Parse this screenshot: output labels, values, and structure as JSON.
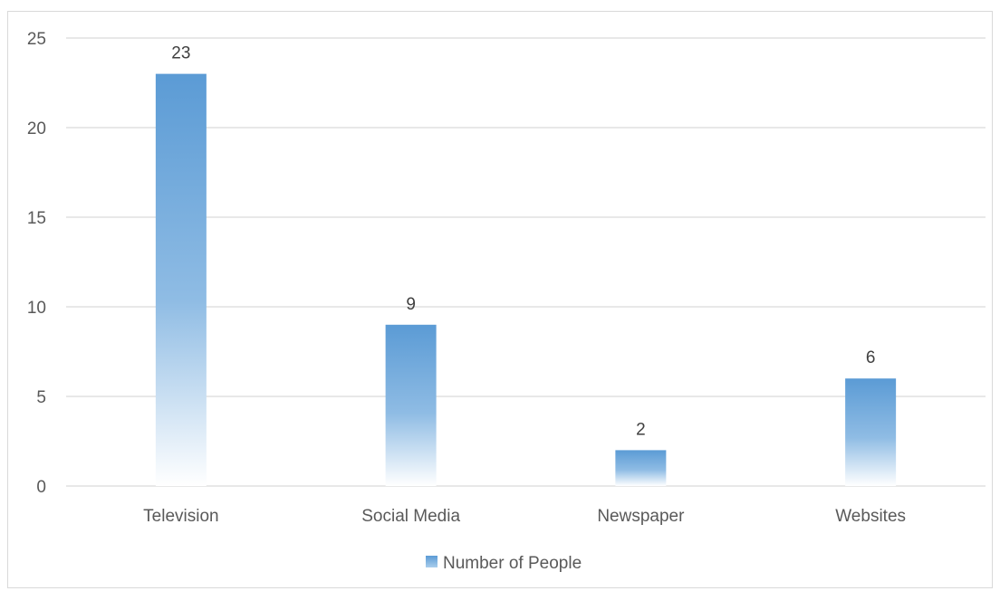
{
  "chart_data": {
    "type": "bar",
    "categories": [
      "Television",
      "Social Media",
      "Newspaper",
      "Websites"
    ],
    "series": [
      {
        "name": "Number of People",
        "values": [
          23,
          9,
          2,
          6
        ]
      }
    ],
    "ylim": [
      0,
      25
    ],
    "yticks": [
      0,
      5,
      10,
      15,
      20,
      25
    ],
    "ytick_labels": [
      "0",
      "5",
      "10",
      "15",
      "20",
      "25"
    ],
    "data_labels": [
      "23",
      "9",
      "2",
      "6"
    ],
    "grid": true,
    "legend": {
      "position": "bottom",
      "label": "Number of People"
    },
    "colors": {
      "bar_top": "#5b9bd5",
      "bar_bottom": "#ffffff",
      "grid": "#d9d9d9",
      "text": "#595959"
    }
  }
}
